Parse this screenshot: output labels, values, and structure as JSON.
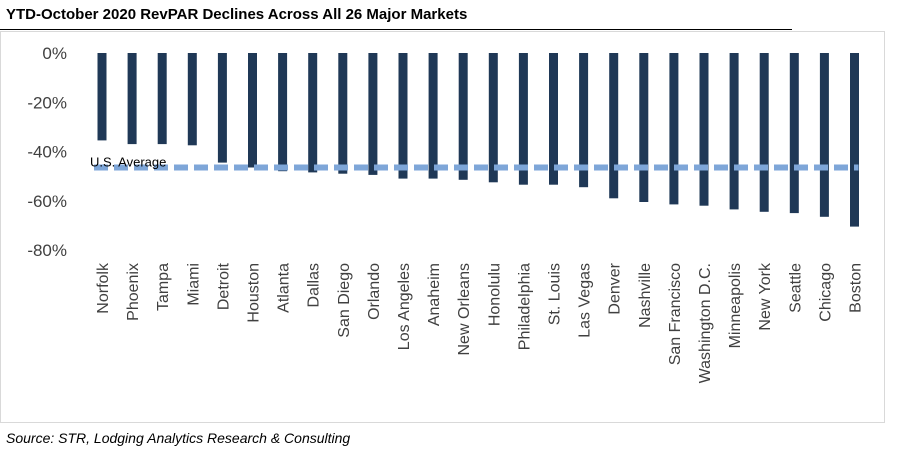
{
  "title": "YTD-October 2020 RevPAR Declines Across All 26 Major Markets",
  "source": "Source:  STR, Lodging Analytics Research & Consulting",
  "colors": {
    "bar": "#1f3856",
    "average_line": "#7ea6d8",
    "axis_text": "#404040"
  },
  "chart_data": {
    "type": "bar",
    "title": "YTD-October 2020 RevPAR Declines Across All 26 Major Markets",
    "xlabel": "",
    "ylabel": "",
    "categories": [
      "Norfolk",
      "Phoenix",
      "Tampa",
      "Miami",
      "Detroit",
      "Houston",
      "Atlanta",
      "Dallas",
      "San Diego",
      "Orlando",
      "Los Angeles",
      "Anaheim",
      "New Orleans",
      "Honolulu",
      "Philadelphia",
      "St. Louis",
      "Las Vegas",
      "Denver",
      "Nashville",
      "San Francisco",
      "Washington D.C.",
      "Minneapolis",
      "New York",
      "Seattle",
      "Chicago",
      "Boston"
    ],
    "values": [
      -35.5,
      -37,
      -37,
      -37.5,
      -44.5,
      -46.5,
      -48,
      -48.5,
      -49,
      -49.5,
      -51,
      -51,
      -51.5,
      -52.5,
      -53.5,
      -53.5,
      -54.5,
      -59,
      -60.5,
      -61.5,
      -62,
      -63.5,
      -64.5,
      -65,
      -66.5,
      -70.5
    ],
    "yticks": [
      "0%",
      "-20%",
      "-40%",
      "-60%",
      "-80%"
    ],
    "ylim": [
      -80,
      0
    ],
    "average": {
      "label": "U.S. Average",
      "value": -46.5
    },
    "grid": false,
    "legend": "none"
  }
}
